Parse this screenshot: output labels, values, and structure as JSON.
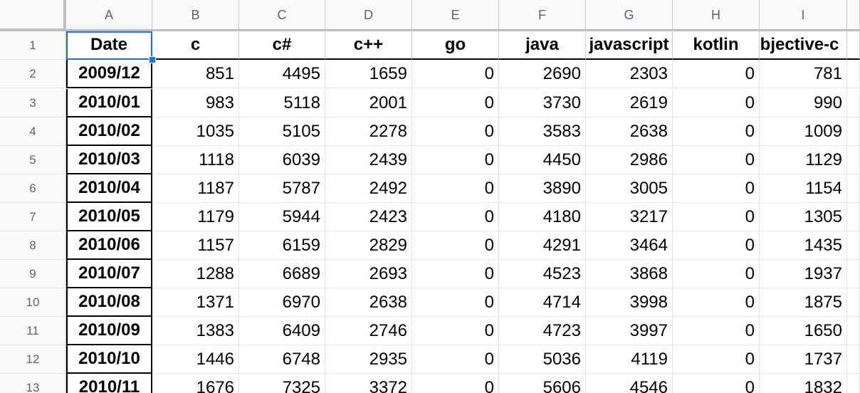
{
  "columns": [
    "A",
    "B",
    "C",
    "D",
    "E",
    "F",
    "G",
    "H",
    "I"
  ],
  "row_numbers": [
    "1",
    "2",
    "3",
    "4",
    "5",
    "6",
    "7",
    "8",
    "9",
    "10",
    "11",
    "12",
    "13"
  ],
  "selected_cell": "A1",
  "header_row": [
    "Date",
    "c",
    "c#",
    "c++",
    "go",
    "java",
    "javascript",
    "kotlin",
    "objective-c"
  ],
  "rows": [
    [
      "2009/12",
      "851",
      "4495",
      "1659",
      "0",
      "2690",
      "2303",
      "0",
      "781"
    ],
    [
      "2010/01",
      "983",
      "5118",
      "2001",
      "0",
      "3730",
      "2619",
      "0",
      "990"
    ],
    [
      "2010/02",
      "1035",
      "5105",
      "2278",
      "0",
      "3583",
      "2638",
      "0",
      "1009"
    ],
    [
      "2010/03",
      "1118",
      "6039",
      "2439",
      "0",
      "4450",
      "2986",
      "0",
      "1129"
    ],
    [
      "2010/04",
      "1187",
      "5787",
      "2492",
      "0",
      "3890",
      "3005",
      "0",
      "1154"
    ],
    [
      "2010/05",
      "1179",
      "5944",
      "2423",
      "0",
      "4180",
      "3217",
      "0",
      "1305"
    ],
    [
      "2010/06",
      "1157",
      "6159",
      "2829",
      "0",
      "4291",
      "3464",
      "0",
      "1435"
    ],
    [
      "2010/07",
      "1288",
      "6689",
      "2693",
      "0",
      "4523",
      "3868",
      "0",
      "1937"
    ],
    [
      "2010/08",
      "1371",
      "6970",
      "2638",
      "0",
      "4714",
      "3998",
      "0",
      "1875"
    ],
    [
      "2010/09",
      "1383",
      "6409",
      "2746",
      "0",
      "4723",
      "3997",
      "0",
      "1650"
    ],
    [
      "2010/10",
      "1446",
      "6748",
      "2935",
      "0",
      "5036",
      "4119",
      "0",
      "1737"
    ],
    [
      "2010/11",
      "1676",
      "7325",
      "3372",
      "0",
      "5606",
      "4546",
      "0",
      "1832"
    ]
  ]
}
